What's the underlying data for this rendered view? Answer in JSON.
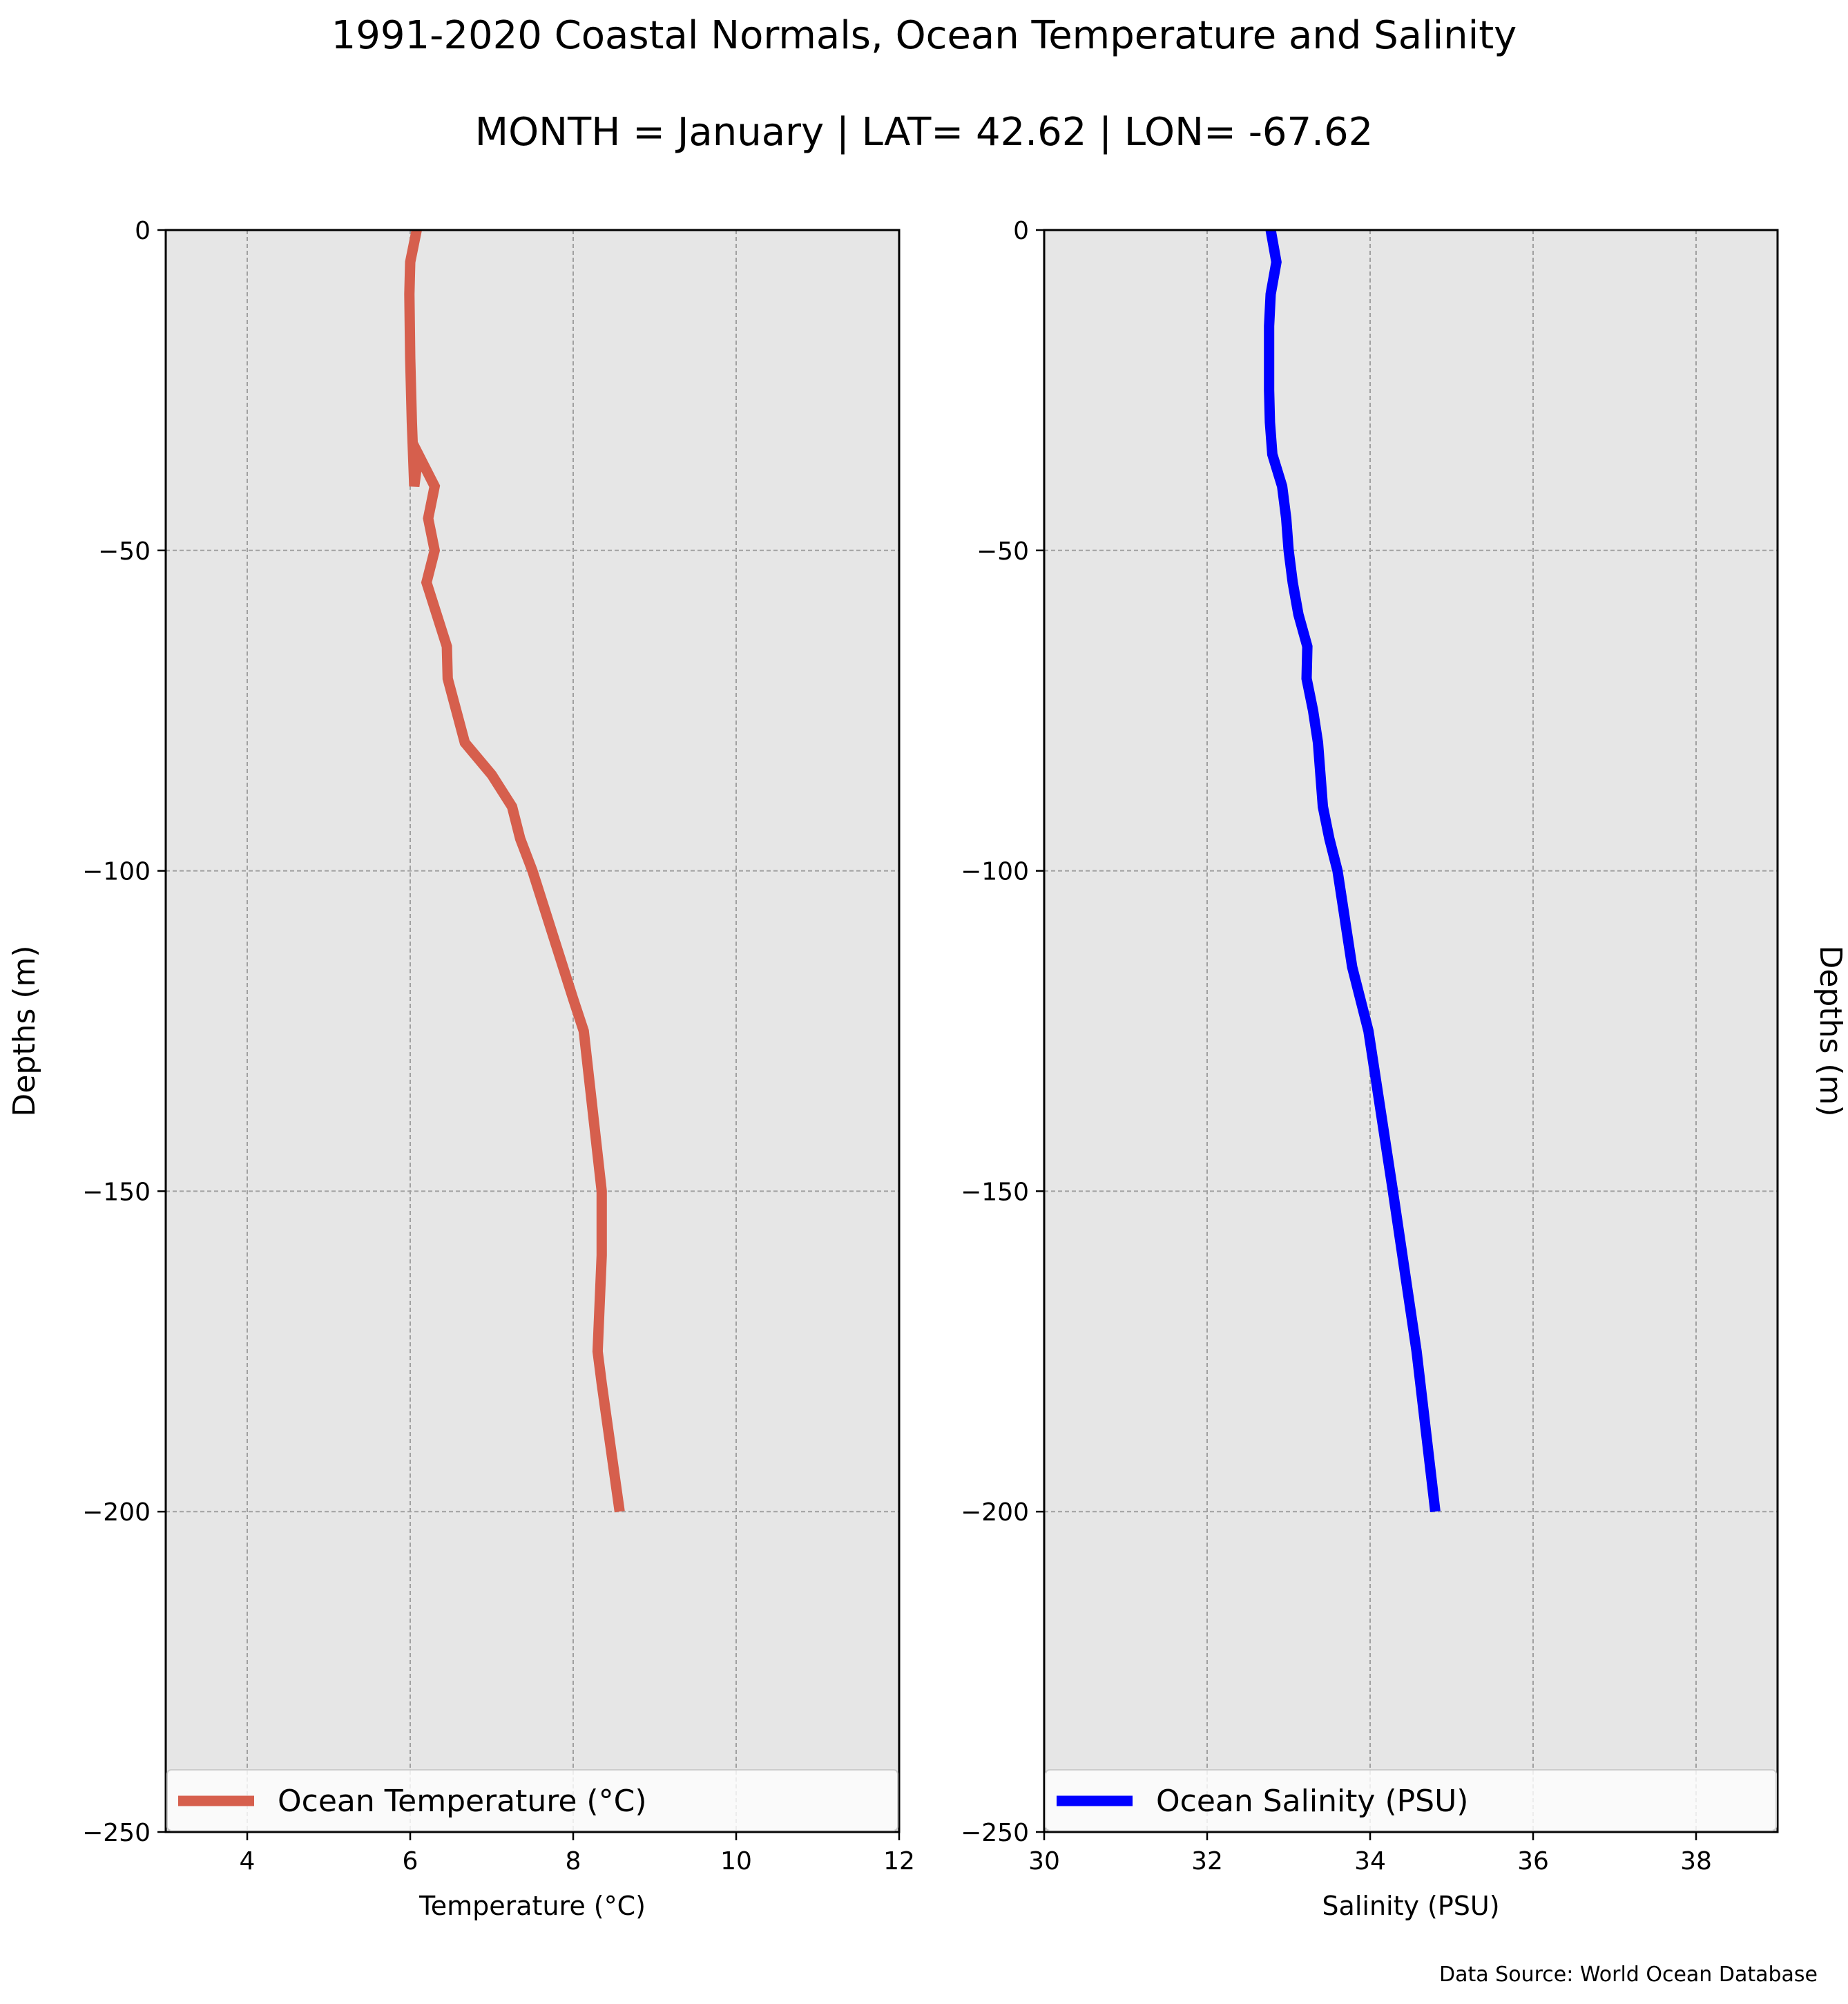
{
  "figure": {
    "title": "1991-2020 Coastal Normals, Ocean Temperature and Salinity",
    "subtitle": "MONTH = January | LAT= 42.62 | LON= -67.62",
    "source_note": "Data Source: World Ocean Database"
  },
  "chart_data": [
    {
      "type": "line",
      "orientation": "profile",
      "title": "",
      "xlabel": "Temperature (°C)",
      "ylabel": "Depths (m)",
      "xlim": [
        3,
        12
      ],
      "ylim": [
        -250,
        0
      ],
      "xticks": [
        "4",
        "6",
        "8",
        "10",
        "12"
      ],
      "xtick_values": [
        4,
        6,
        8,
        10,
        12
      ],
      "yticks": [
        "0",
        "−50",
        "−100",
        "−150",
        "−200",
        "−250"
      ],
      "ytick_values": [
        0,
        -50,
        -100,
        -150,
        -200,
        -250
      ],
      "grid": true,
      "legend_position": "bottom",
      "series": [
        {
          "name": "Ocean Temperature (°C)",
          "color": "#d65f4d",
          "x": [
            6.08,
            6.0,
            5.99,
            6.0,
            6.02,
            6.05,
            6.1,
            6.3,
            6.22,
            6.3,
            6.2,
            6.45,
            6.46,
            6.67,
            7.0,
            7.25,
            7.35,
            7.5,
            8.0,
            8.13,
            8.35,
            8.35,
            8.3,
            8.35,
            8.57
          ],
          "y": [
            0,
            -5,
            -10,
            -20,
            -30,
            -40,
            -35,
            -40,
            -45,
            -50,
            -55,
            -65,
            -70,
            -80,
            -85,
            -90,
            -95,
            -100,
            -120,
            -125,
            -150,
            -160,
            -175,
            -180,
            -200
          ]
        }
      ]
    },
    {
      "type": "line",
      "orientation": "profile",
      "title": "",
      "xlabel": "Salinity (PSU)",
      "ylabel": "Depths (m)",
      "xlim": [
        30,
        39
      ],
      "ylim": [
        -250,
        0
      ],
      "xticks": [
        "30",
        "32",
        "34",
        "36",
        "38"
      ],
      "xtick_values": [
        30,
        32,
        34,
        36,
        38
      ],
      "yticks": [
        "0",
        "−50",
        "−100",
        "−150",
        "−200",
        "−250"
      ],
      "ytick_values": [
        0,
        -50,
        -100,
        -150,
        -200,
        -250
      ],
      "grid": true,
      "legend_position": "bottom",
      "series": [
        {
          "name": "Ocean Salinity (PSU)",
          "color": "#0000ff",
          "x": [
            32.78,
            32.85,
            32.78,
            32.76,
            32.76,
            32.77,
            32.8,
            32.92,
            32.97,
            33.0,
            33.05,
            33.12,
            33.23,
            33.22,
            33.3,
            33.36,
            33.42,
            33.5,
            33.6,
            33.78,
            33.98,
            34.28,
            34.57,
            34.8
          ],
          "y": [
            0,
            -5,
            -10,
            -15,
            -25,
            -30,
            -35,
            -40,
            -45,
            -50,
            -55,
            -60,
            -65,
            -70,
            -75,
            -80,
            -90,
            -95,
            -100,
            -115,
            -125,
            -150,
            -175,
            -200
          ]
        }
      ]
    }
  ]
}
